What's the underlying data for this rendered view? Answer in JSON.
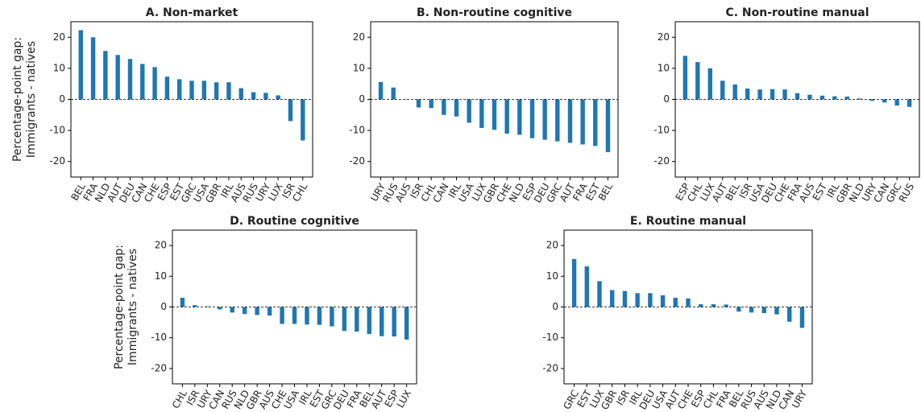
{
  "chart_data": [
    {
      "type": "bar",
      "title": "A. Non-market",
      "ylabel": [
        "Percentage-point gap:",
        "Immigrants - natives"
      ],
      "categories": [
        "BEL",
        "FRA",
        "NLD",
        "AUT",
        "DEU",
        "CAN",
        "CHE",
        "ESP",
        "EST",
        "GRC",
        "USA",
        "GBR",
        "IRL",
        "AUS",
        "RUS",
        "URY",
        "LUX",
        "ISR",
        "CHL"
      ],
      "values": [
        22.3,
        20,
        15.6,
        14.3,
        13,
        11.4,
        10.4,
        7.3,
        6.5,
        6,
        6,
        5.5,
        5.5,
        3.6,
        2.3,
        2.1,
        1.3,
        -7,
        -13.2
      ],
      "color": "#1f77b4",
      "ylim": [
        -25,
        25
      ],
      "yticks": [
        -20,
        -10,
        0,
        10,
        20
      ],
      "hline": 0
    },
    {
      "type": "bar",
      "title": "B. Non-routine cognitive",
      "categories": [
        "URY",
        "RUS",
        "AUS",
        "ISR",
        "CHL",
        "CAN",
        "IRL",
        "USA",
        "LUX",
        "GBR",
        "CHE",
        "NLD",
        "ESP",
        "DEU",
        "GRC",
        "AUT",
        "FRA",
        "EST",
        "BEL"
      ],
      "values": [
        5.6,
        3.8,
        0.1,
        -2.6,
        -2.8,
        -5,
        -5.5,
        -7.5,
        -9.2,
        -9.8,
        -11,
        -11.4,
        -12.5,
        -13,
        -13.5,
        -14,
        -14.5,
        -15,
        -17
      ],
      "color": "#1f77b4",
      "ylim": [
        -25,
        25
      ],
      "yticks": [
        -20,
        -10,
        0,
        10,
        20
      ],
      "hline": 0
    },
    {
      "type": "bar",
      "title": "C. Non-routine manual",
      "categories": [
        "ESP",
        "CHL",
        "LUX",
        "AUT",
        "BEL",
        "ISR",
        "USA",
        "DEU",
        "CHE",
        "FRA",
        "AUS",
        "EST",
        "IRL",
        "GBR",
        "NLD",
        "URY",
        "CAN",
        "GRC",
        "RUS"
      ],
      "values": [
        14,
        12,
        10,
        6,
        4.8,
        3.5,
        3.2,
        3.3,
        3.2,
        2,
        1.5,
        1.2,
        1,
        0.9,
        0.3,
        -0.5,
        -1,
        -2,
        -2.4
      ],
      "color": "#1f77b4",
      "ylim": [
        -25,
        25
      ],
      "yticks": [
        -20,
        -10,
        0,
        10,
        20
      ],
      "hline": 0
    },
    {
      "type": "bar",
      "title": "D. Routine cognitive",
      "ylabel": [
        "Percentage-point gap:",
        "Immigrants - natives"
      ],
      "categories": [
        "CHL",
        "ISR",
        "URY",
        "CAN",
        "RUS",
        "NLD",
        "GBR",
        "AUS",
        "CHE",
        "USA",
        "IRL",
        "EST",
        "GRC",
        "DEU",
        "FRA",
        "BEL",
        "AUT",
        "ESP",
        "LUX"
      ],
      "values": [
        3,
        0.6,
        0.2,
        -0.8,
        -1.8,
        -2.3,
        -2.6,
        -2.8,
        -5.5,
        -5.5,
        -5.7,
        -5.8,
        -6.3,
        -7.8,
        -8,
        -8.8,
        -9.5,
        -9.6,
        -10.6
      ],
      "color": "#1f77b4",
      "ylim": [
        -25,
        25
      ],
      "yticks": [
        -20,
        -10,
        0,
        10,
        20
      ],
      "hline": 0
    },
    {
      "type": "bar",
      "title": "E. Routine manual",
      "categories": [
        "GRC",
        "EST",
        "LUX",
        "GBR",
        "ISR",
        "IRL",
        "DEU",
        "USA",
        "AUT",
        "CHE",
        "ESP",
        "CHL",
        "FRA",
        "BEL",
        "RUS",
        "AUS",
        "NLD",
        "CAN",
        "URY"
      ],
      "values": [
        15.6,
        13.2,
        8.4,
        5.5,
        5.2,
        4.5,
        4.5,
        3.8,
        3,
        2.8,
        0.9,
        0.9,
        0.8,
        -1.5,
        -1.8,
        -2,
        -2.4,
        -4.8,
        -6.8
      ],
      "color": "#1f77b4",
      "ylim": [
        -25,
        25
      ],
      "yticks": [
        -20,
        -10,
        0,
        10,
        20
      ],
      "hline": 0
    }
  ]
}
